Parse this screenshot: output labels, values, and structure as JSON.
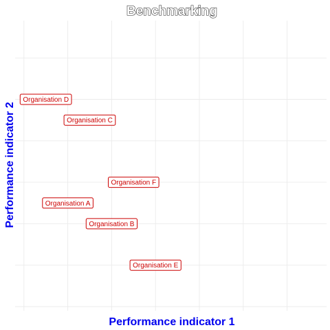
{
  "chart_data": {
    "type": "scatter",
    "title": "Benchmarking",
    "xlabel": "Performance indicator 1",
    "ylabel": "Performance indicator 2",
    "xlim": [
      0.8,
      7.9
    ],
    "ylim": [
      0.9,
      7.9
    ],
    "grid": true,
    "colors": {
      "axis_label": "#0000ee",
      "point_label": "#cc0000",
      "grid": "#ebebeb"
    },
    "points": [
      {
        "label": "Organisation A",
        "x": 2.0,
        "y": 3.5
      },
      {
        "label": "Organisation B",
        "x": 3.0,
        "y": 3.0
      },
      {
        "label": "Organisation C",
        "x": 2.5,
        "y": 5.5
      },
      {
        "label": "Organisation D",
        "x": 1.5,
        "y": 6.0
      },
      {
        "label": "Organisation E",
        "x": 4.0,
        "y": 2.0
      },
      {
        "label": "Organisation F",
        "x": 3.5,
        "y": 4.0
      }
    ]
  }
}
